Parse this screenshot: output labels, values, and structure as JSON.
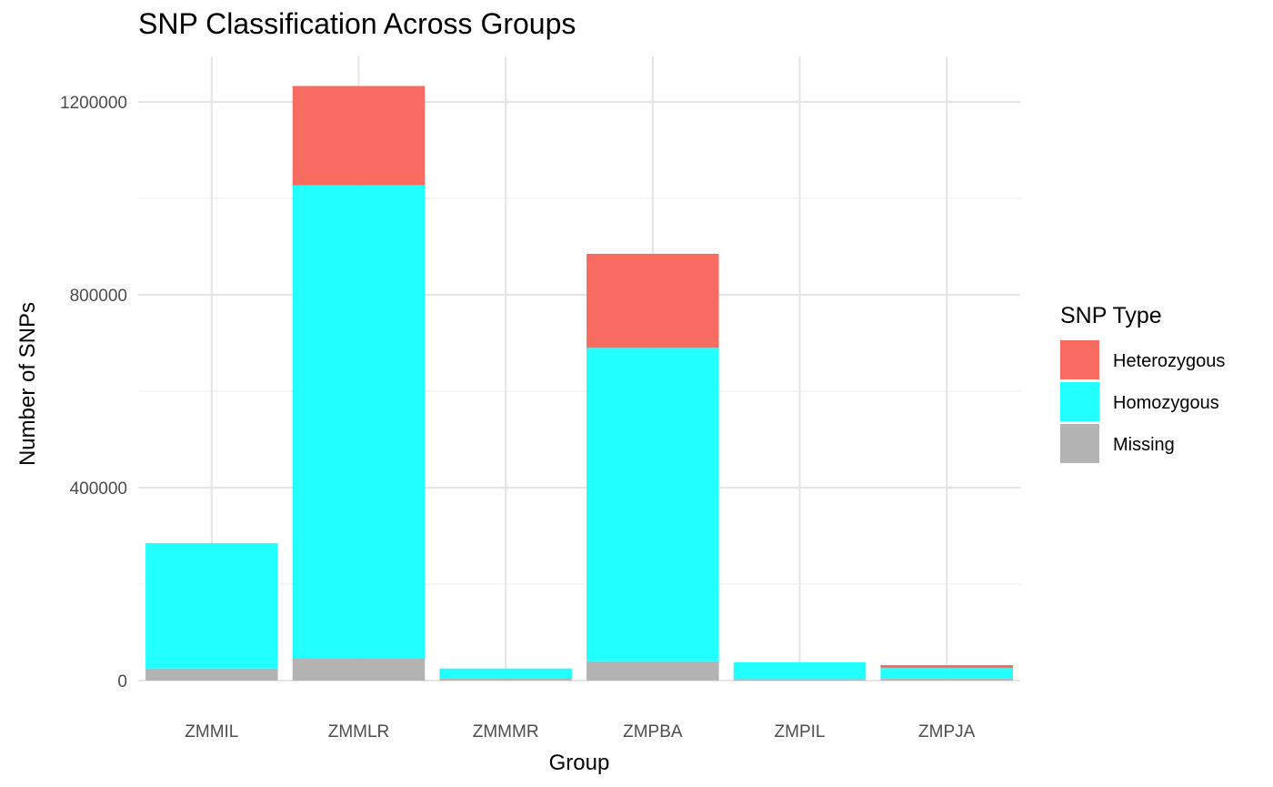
{
  "chart_data": {
    "type": "bar",
    "stacked": true,
    "title": "SNP Classification Across Groups",
    "xlabel": "Group",
    "ylabel": "Number of SNPs",
    "categories": [
      "ZMMIL",
      "ZMMLR",
      "ZMMMR",
      "ZMPBA",
      "ZMPIL",
      "ZMPJA"
    ],
    "series": [
      {
        "name": "Missing",
        "color": "#b3b3b3",
        "values": [
          25000,
          47000,
          5000,
          40000,
          3000,
          4000
        ]
      },
      {
        "name": "Homozygous",
        "color": "#22ffff",
        "values": [
          260000,
          980000,
          20000,
          650000,
          35000,
          22000
        ]
      },
      {
        "name": "Heterozygous",
        "color": "#f76b60",
        "values": [
          0,
          206000,
          0,
          195000,
          0,
          6000
        ]
      }
    ],
    "ylim": [
      0,
      1290000
    ],
    "yticks": [
      0,
      400000,
      800000,
      1200000
    ],
    "ytick_labels": [
      "0",
      "400000",
      "800000",
      "1200000"
    ],
    "grid": true,
    "legend": {
      "title": "SNP Type",
      "placement": "right",
      "order": [
        "Heterozygous",
        "Homozygous",
        "Missing"
      ]
    }
  }
}
